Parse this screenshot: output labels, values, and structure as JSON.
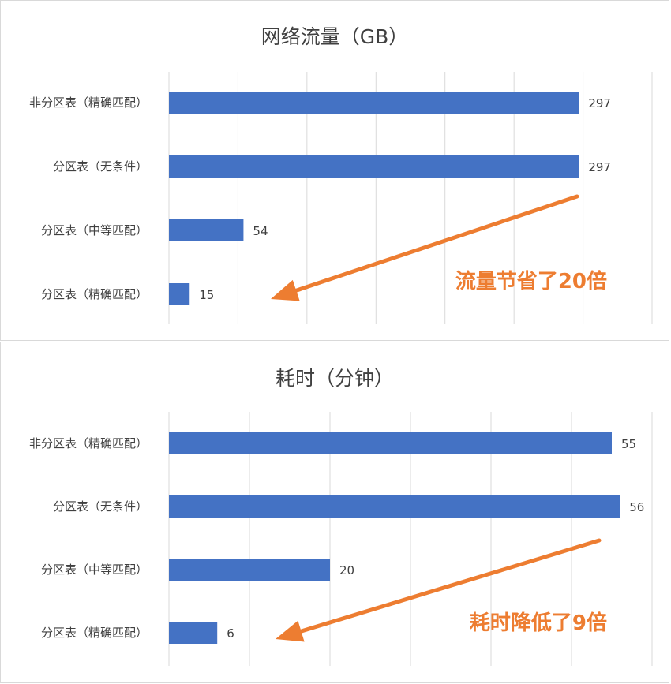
{
  "chart_data": [
    {
      "type": "bar",
      "orientation": "horizontal",
      "title": "网络流量（GB）",
      "categories": [
        "非分区表（精确匹配）",
        "分区表（无条件）",
        "分区表（中等匹配）",
        "分区表（精确匹配）"
      ],
      "values": [
        297,
        297,
        54,
        15
      ],
      "xlim": [
        0,
        350
      ],
      "grid": true,
      "bar_color": "#4472c4",
      "annotation": {
        "text": "流量节省了20倍",
        "color": "#ed7d31"
      }
    },
    {
      "type": "bar",
      "orientation": "horizontal",
      "title": "耗时（分钟）",
      "categories": [
        "非分区表（精确匹配）",
        "分区表（无条件）",
        "分区表（中等匹配）",
        "分区表（精确匹配）"
      ],
      "values": [
        55,
        56,
        20,
        6
      ],
      "xlim": [
        0,
        60
      ],
      "grid": true,
      "bar_color": "#4472c4",
      "annotation": {
        "text": "耗时降低了9倍",
        "color": "#ed7d31"
      }
    }
  ]
}
